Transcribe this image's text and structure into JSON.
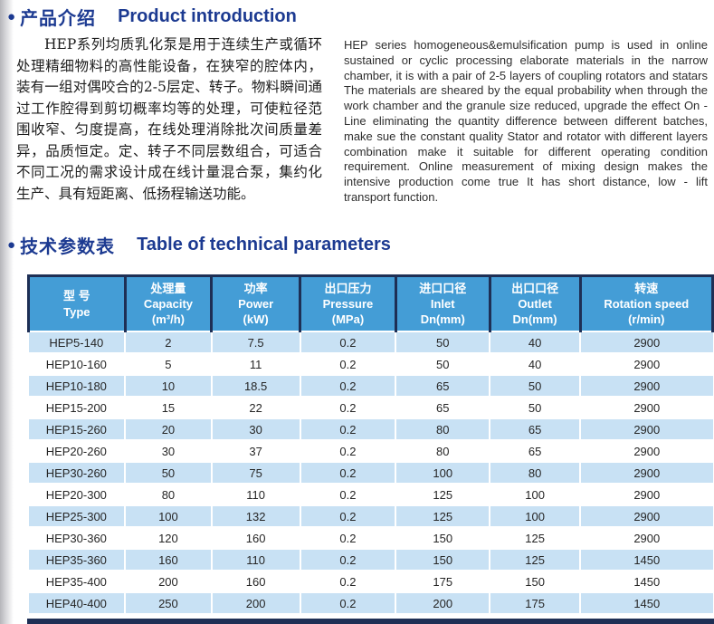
{
  "colors": {
    "heading_navy": "#1c3a91",
    "table_header_blue": "#449dd6",
    "table_row_blue": "#c8e1f4",
    "table_border_navy": "#1e2f55"
  },
  "product_intro": {
    "bullet": "●",
    "heading_zh": "产品介绍",
    "heading_en": "Product introduction",
    "paragraph_zh": "HEP系列均质乳化泵是用于连续生产或循环处理精细物料的高性能设备，在狭窄的腔体内，装有一组对偶咬合的2-5层定、转子。物料瞬间通过工作腔得到剪切概率均等的处理，可使粒径范围收窄、匀度提高，在线处理消除批次间质量差异，品质恒定。定、转子不同层数组合，可适合不同工况的需求设计成在线计量混合泵，集约化生产、具有短距离、低扬程输送功能。",
    "paragraph_en": "HEP series  homogeneous&emulsification pump is used in online sustained or cyclic processing elaborate materials in the narrow chamber, it is with a pair of 2-5 layers of coupling rotators and statars The materials are sheared by the equal probability when through the work chamber and the granule size reduced, upgrade the effect On - Line eliminating the quantity difference between different batches, make sue the constant quality Stator and rotator with different layers combination make it suitable for different operating condition requirement. Online measurement of mixing design makes the intensive production come true It has short distance, low - lift transport function."
  },
  "technical_parameters": {
    "bullet": "●",
    "heading_zh": "技术参数表",
    "heading_en": "Table of technical parameters",
    "table": {
      "columns": [
        {
          "zh": "型 号",
          "en": "Type",
          "unit": ""
        },
        {
          "zh": "处理量",
          "en": "Capacity",
          "unit": "(m³/h)"
        },
        {
          "zh": "功率",
          "en": "Power",
          "unit": "(kW)"
        },
        {
          "zh": "出口压力",
          "en": "Pressure",
          "unit": "(MPa)"
        },
        {
          "zh": "进口口径",
          "en": "Inlet",
          "unit": "Dn(mm)"
        },
        {
          "zh": "出口口径",
          "en": "Outlet",
          "unit": "Dn(mm)"
        },
        {
          "zh": "转速",
          "en": "Rotation speed",
          "unit": "(r/min)"
        }
      ],
      "rows": [
        [
          "HEP5-140",
          "2",
          "7.5",
          "0.2",
          "50",
          "40",
          "2900"
        ],
        [
          "HEP10-160",
          "5",
          "11",
          "0.2",
          "50",
          "40",
          "2900"
        ],
        [
          "HEP10-180",
          "10",
          "18.5",
          "0.2",
          "65",
          "50",
          "2900"
        ],
        [
          "HEP15-200",
          "15",
          "22",
          "0.2",
          "65",
          "50",
          "2900"
        ],
        [
          "HEP15-260",
          "20",
          "30",
          "0.2",
          "80",
          "65",
          "2900"
        ],
        [
          "HEP20-260",
          "30",
          "37",
          "0.2",
          "80",
          "65",
          "2900"
        ],
        [
          "HEP30-260",
          "50",
          "75",
          "0.2",
          "100",
          "80",
          "2900"
        ],
        [
          "HEP20-300",
          "80",
          "110",
          "0.2",
          "125",
          "100",
          "2900"
        ],
        [
          "HEP25-300",
          "100",
          "132",
          "0.2",
          "125",
          "100",
          "2900"
        ],
        [
          "HEP30-360",
          "120",
          "160",
          "0.2",
          "150",
          "125",
          "2900"
        ],
        [
          "HEP35-360",
          "160",
          "110",
          "0.2",
          "150",
          "125",
          "1450"
        ],
        [
          "HEP35-400",
          "200",
          "160",
          "0.2",
          "175",
          "150",
          "1450"
        ],
        [
          "HEP40-400",
          "250",
          "200",
          "0.2",
          "200",
          "175",
          "1450"
        ]
      ]
    }
  }
}
